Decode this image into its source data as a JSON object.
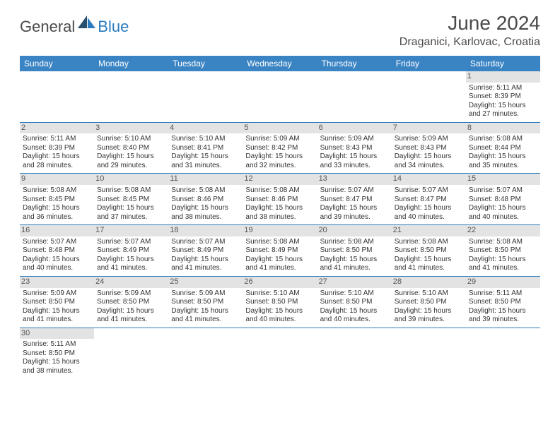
{
  "brand": {
    "name_a": "General",
    "name_b": "Blue",
    "color_a": "#4a4a4a",
    "color_b": "#2b7bbf"
  },
  "title": "June 2024",
  "location": "Draganici, Karlovac, Croatia",
  "colors": {
    "header_bg": "#3b84c4",
    "header_fg": "#ffffff",
    "daynum_bg": "#e3e3e3",
    "rule": "#2b7bbf",
    "text": "#333333"
  },
  "weekdays": [
    "Sunday",
    "Monday",
    "Tuesday",
    "Wednesday",
    "Thursday",
    "Friday",
    "Saturday"
  ],
  "weeks": [
    [
      {
        "n": "",
        "blank": true
      },
      {
        "n": "",
        "blank": true
      },
      {
        "n": "",
        "blank": true
      },
      {
        "n": "",
        "blank": true
      },
      {
        "n": "",
        "blank": true
      },
      {
        "n": "",
        "blank": true
      },
      {
        "n": "1",
        "sunrise": "5:11 AM",
        "sunset": "8:39 PM",
        "dayh": "15",
        "daym": "27"
      }
    ],
    [
      {
        "n": "2",
        "sunrise": "5:11 AM",
        "sunset": "8:39 PM",
        "dayh": "15",
        "daym": "28"
      },
      {
        "n": "3",
        "sunrise": "5:10 AM",
        "sunset": "8:40 PM",
        "dayh": "15",
        "daym": "29"
      },
      {
        "n": "4",
        "sunrise": "5:10 AM",
        "sunset": "8:41 PM",
        "dayh": "15",
        "daym": "31"
      },
      {
        "n": "5",
        "sunrise": "5:09 AM",
        "sunset": "8:42 PM",
        "dayh": "15",
        "daym": "32"
      },
      {
        "n": "6",
        "sunrise": "5:09 AM",
        "sunset": "8:43 PM",
        "dayh": "15",
        "daym": "33"
      },
      {
        "n": "7",
        "sunrise": "5:09 AM",
        "sunset": "8:43 PM",
        "dayh": "15",
        "daym": "34"
      },
      {
        "n": "8",
        "sunrise": "5:08 AM",
        "sunset": "8:44 PM",
        "dayh": "15",
        "daym": "35"
      }
    ],
    [
      {
        "n": "9",
        "sunrise": "5:08 AM",
        "sunset": "8:45 PM",
        "dayh": "15",
        "daym": "36"
      },
      {
        "n": "10",
        "sunrise": "5:08 AM",
        "sunset": "8:45 PM",
        "dayh": "15",
        "daym": "37"
      },
      {
        "n": "11",
        "sunrise": "5:08 AM",
        "sunset": "8:46 PM",
        "dayh": "15",
        "daym": "38"
      },
      {
        "n": "12",
        "sunrise": "5:08 AM",
        "sunset": "8:46 PM",
        "dayh": "15",
        "daym": "38"
      },
      {
        "n": "13",
        "sunrise": "5:07 AM",
        "sunset": "8:47 PM",
        "dayh": "15",
        "daym": "39"
      },
      {
        "n": "14",
        "sunrise": "5:07 AM",
        "sunset": "8:47 PM",
        "dayh": "15",
        "daym": "40"
      },
      {
        "n": "15",
        "sunrise": "5:07 AM",
        "sunset": "8:48 PM",
        "dayh": "15",
        "daym": "40"
      }
    ],
    [
      {
        "n": "16",
        "sunrise": "5:07 AM",
        "sunset": "8:48 PM",
        "dayh": "15",
        "daym": "40"
      },
      {
        "n": "17",
        "sunrise": "5:07 AM",
        "sunset": "8:49 PM",
        "dayh": "15",
        "daym": "41"
      },
      {
        "n": "18",
        "sunrise": "5:07 AM",
        "sunset": "8:49 PM",
        "dayh": "15",
        "daym": "41"
      },
      {
        "n": "19",
        "sunrise": "5:08 AM",
        "sunset": "8:49 PM",
        "dayh": "15",
        "daym": "41"
      },
      {
        "n": "20",
        "sunrise": "5:08 AM",
        "sunset": "8:50 PM",
        "dayh": "15",
        "daym": "41"
      },
      {
        "n": "21",
        "sunrise": "5:08 AM",
        "sunset": "8:50 PM",
        "dayh": "15",
        "daym": "41"
      },
      {
        "n": "22",
        "sunrise": "5:08 AM",
        "sunset": "8:50 PM",
        "dayh": "15",
        "daym": "41"
      }
    ],
    [
      {
        "n": "23",
        "sunrise": "5:09 AM",
        "sunset": "8:50 PM",
        "dayh": "15",
        "daym": "41"
      },
      {
        "n": "24",
        "sunrise": "5:09 AM",
        "sunset": "8:50 PM",
        "dayh": "15",
        "daym": "41"
      },
      {
        "n": "25",
        "sunrise": "5:09 AM",
        "sunset": "8:50 PM",
        "dayh": "15",
        "daym": "41"
      },
      {
        "n": "26",
        "sunrise": "5:10 AM",
        "sunset": "8:50 PM",
        "dayh": "15",
        "daym": "40"
      },
      {
        "n": "27",
        "sunrise": "5:10 AM",
        "sunset": "8:50 PM",
        "dayh": "15",
        "daym": "40"
      },
      {
        "n": "28",
        "sunrise": "5:10 AM",
        "sunset": "8:50 PM",
        "dayh": "15",
        "daym": "39"
      },
      {
        "n": "29",
        "sunrise": "5:11 AM",
        "sunset": "8:50 PM",
        "dayh": "15",
        "daym": "39"
      }
    ],
    [
      {
        "n": "30",
        "sunrise": "5:11 AM",
        "sunset": "8:50 PM",
        "dayh": "15",
        "daym": "38"
      },
      {
        "n": "",
        "blank": true
      },
      {
        "n": "",
        "blank": true
      },
      {
        "n": "",
        "blank": true
      },
      {
        "n": "",
        "blank": true
      },
      {
        "n": "",
        "blank": true
      },
      {
        "n": "",
        "blank": true
      }
    ]
  ],
  "labels": {
    "sunrise": "Sunrise:",
    "sunset": "Sunset:",
    "daylight_a": "Daylight:",
    "hours_word": "hours",
    "and_word": "and",
    "minutes_word": "minutes."
  }
}
